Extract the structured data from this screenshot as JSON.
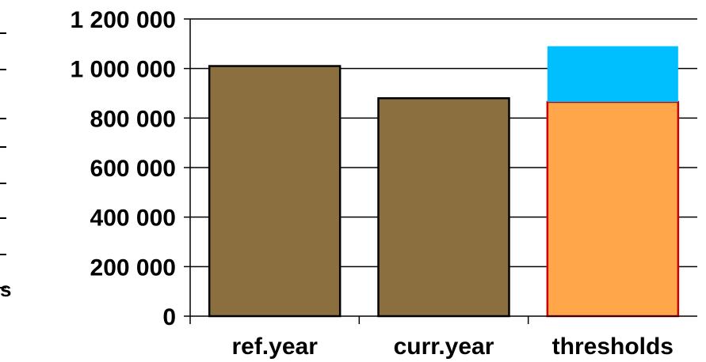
{
  "chart_data": {
    "type": "bar",
    "title": "",
    "xlabel": "",
    "ylabel": "",
    "ylim": [
      0,
      1200000
    ],
    "yticks": [
      0,
      200000,
      400000,
      600000,
      800000,
      1000000,
      1200000
    ],
    "ytick_labels": [
      "0",
      "200 000",
      "400 000",
      "600 000",
      "800 000",
      "1 000 000",
      "1 200 000"
    ],
    "categories": [
      "ref.year",
      "curr.year",
      "thresholds"
    ],
    "grid": "horizontal",
    "bars": [
      {
        "category": "ref.year",
        "segments": [
          {
            "value": 1010000,
            "color": "#8B6F3E",
            "stroke": "#000000"
          }
        ]
      },
      {
        "category": "curr.year",
        "segments": [
          {
            "value": 880000,
            "color": "#8B6F3E",
            "stroke": "#000000"
          }
        ]
      },
      {
        "category": "thresholds",
        "segments": [
          {
            "value": 865000,
            "color": "#FFA54A",
            "stroke": "#CC0000"
          },
          {
            "value": 225000,
            "color": "#00BFFF",
            "stroke": "none"
          }
        ]
      }
    ],
    "left_edge_fragment": "s"
  }
}
